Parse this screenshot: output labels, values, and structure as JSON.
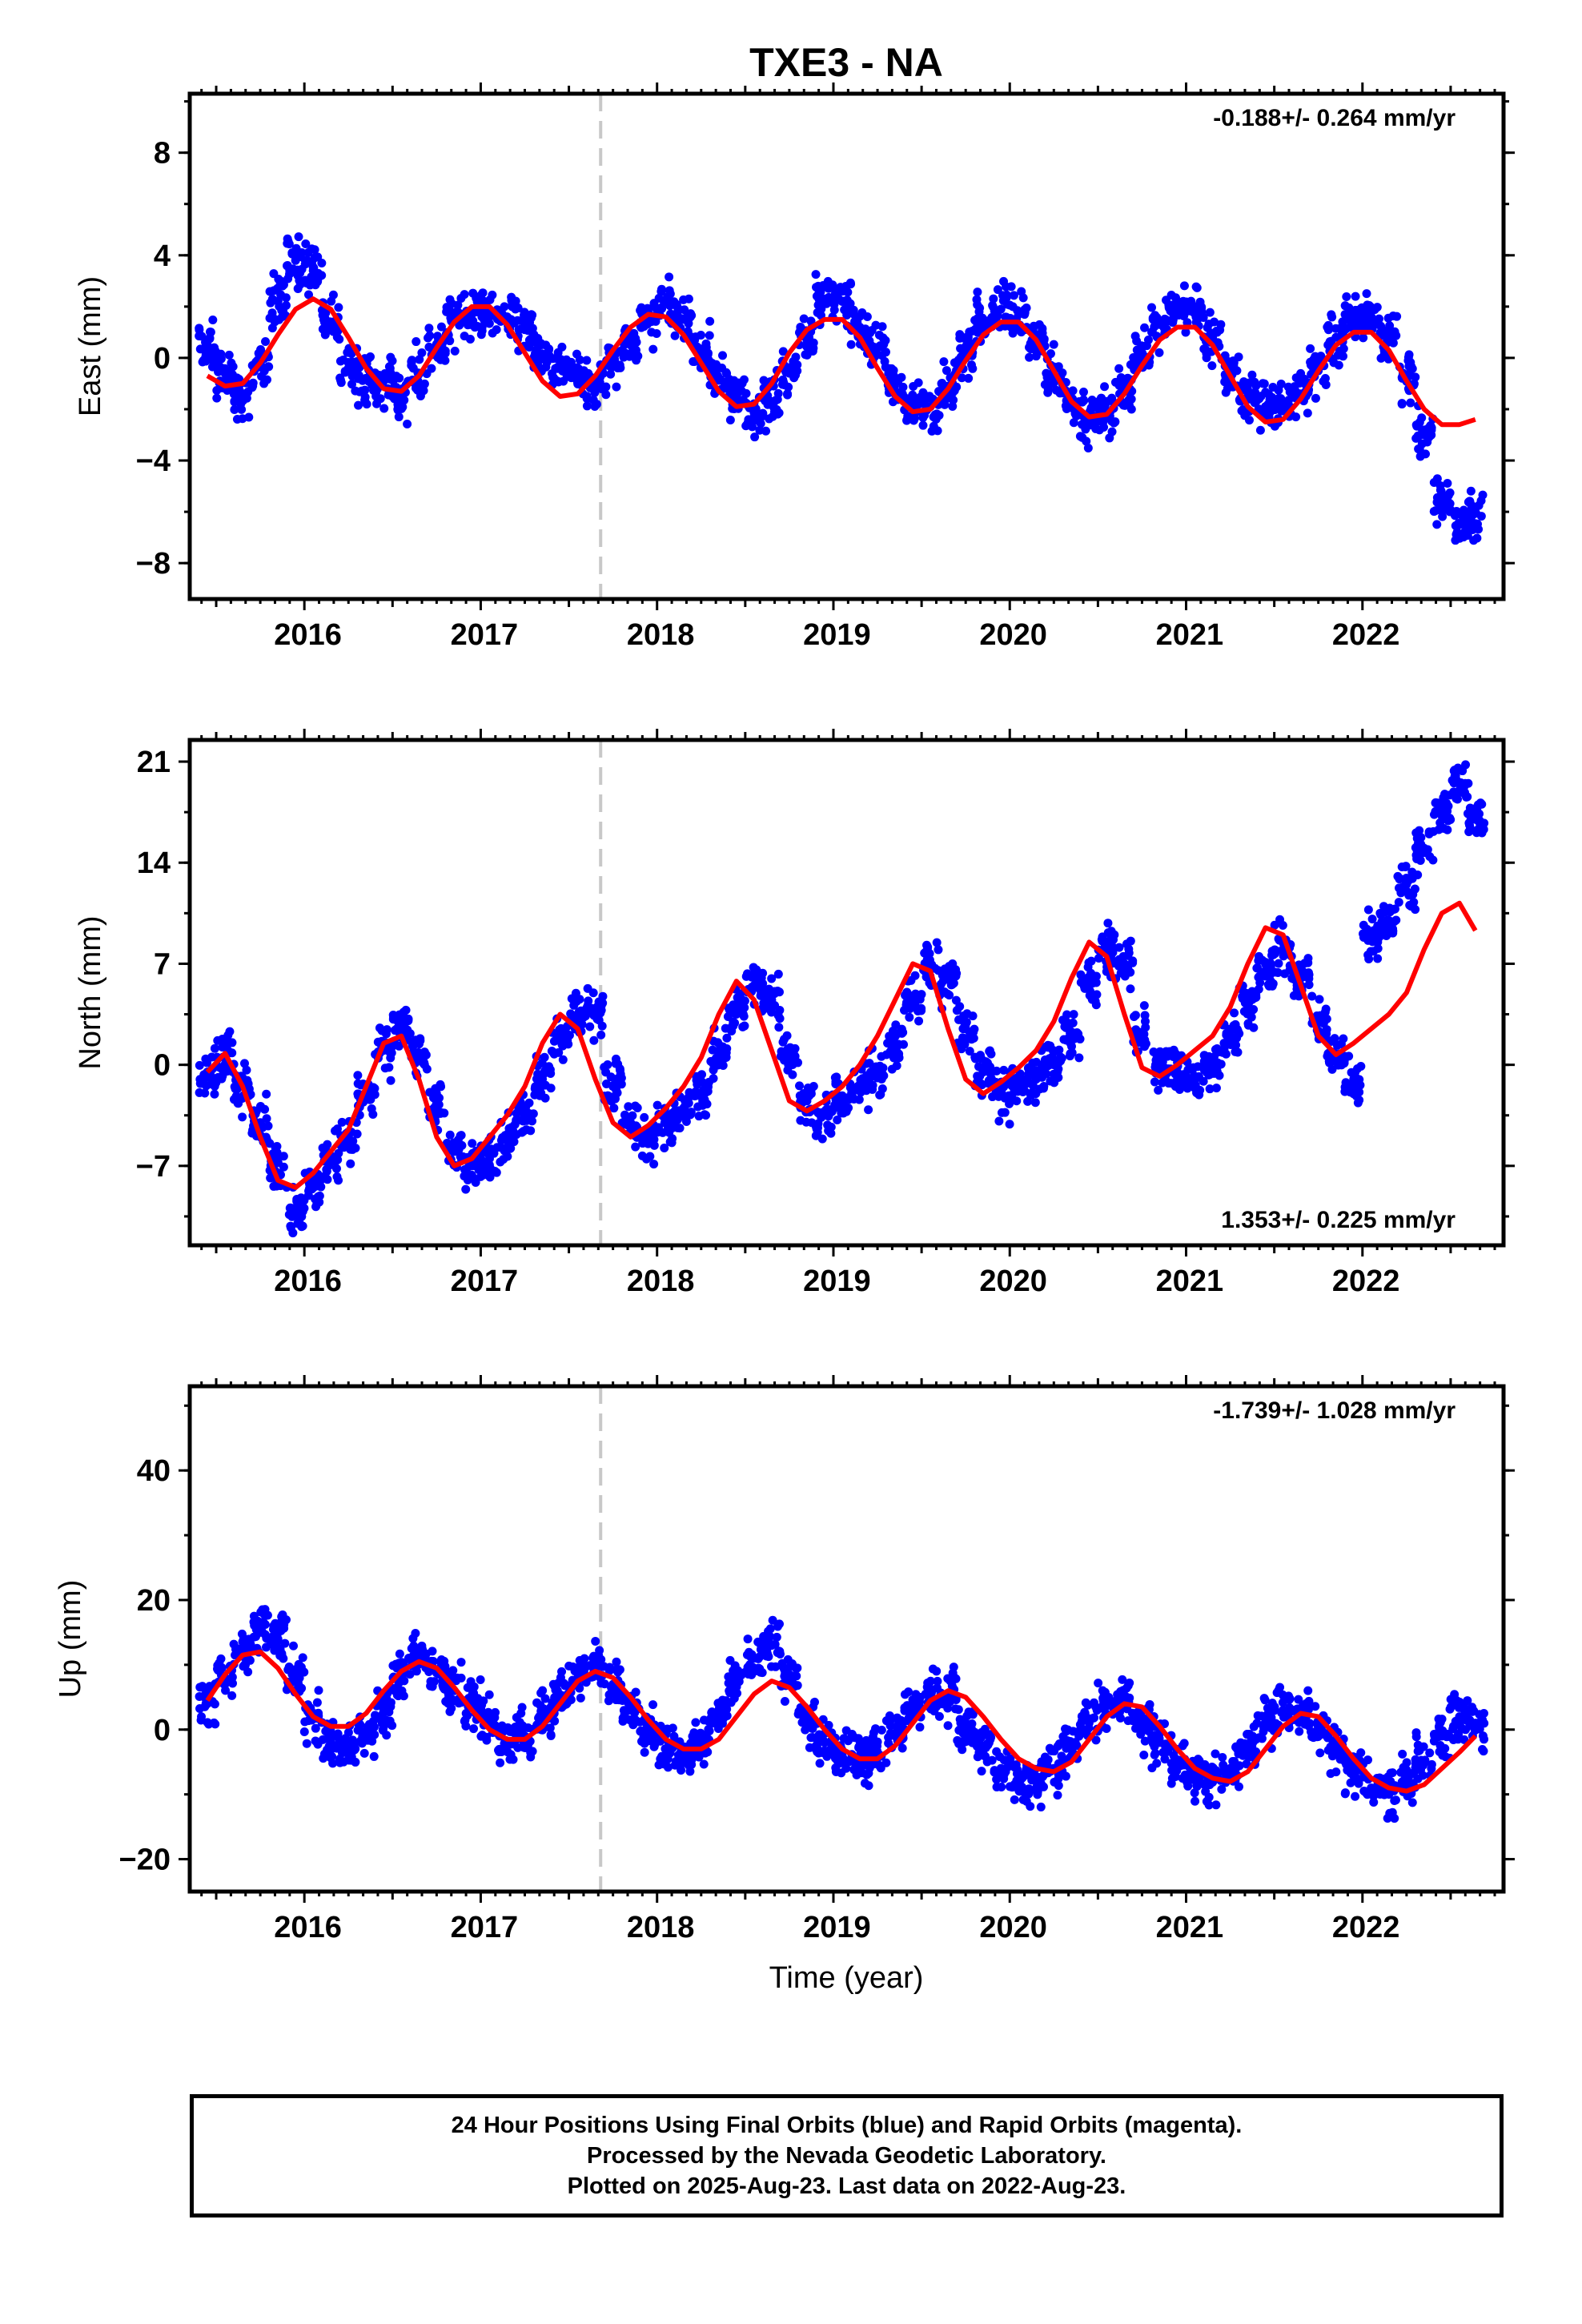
{
  "title": "TXE3 - NA",
  "xlabel": "Time (year)",
  "colors": {
    "points": "#0000ff",
    "model": "#ff0000",
    "discontinuity": "#c8c8c8",
    "axis": "#000000"
  },
  "footer": {
    "line1": "24 Hour Positions Using Final Orbits (blue) and Rapid Orbits (magenta).",
    "line2": "Processed by the Nevada Geodetic Laboratory.",
    "line3": "Plotted on 2025-Aug-23. Last data on 2022-Aug-23."
  },
  "chart_data": [
    {
      "type": "scatter",
      "panel": "east",
      "ylabel": "East (mm)",
      "rate_label": "-0.188+/- 0.264 mm/yr",
      "rate_position": "top-right",
      "xlim": [
        2015.35,
        2022.8
      ],
      "ylim": [
        -9.4,
        10.3
      ],
      "x_ticks": [
        "2016",
        "2017",
        "2018",
        "2019",
        "2020",
        "2021",
        "2022"
      ],
      "y_ticks": [
        8,
        4,
        0,
        -4,
        -8
      ],
      "discontinuity_x": 2017.68,
      "series": [
        {
          "role": "data",
          "x": [
            2015.45,
            2015.55,
            2015.65,
            2015.75,
            2015.85,
            2015.95,
            2016.05,
            2016.15,
            2016.25,
            2016.35,
            2016.45,
            2016.55,
            2016.65,
            2016.75,
            2016.85,
            2016.95,
            2017.05,
            2017.15,
            2017.25,
            2017.35,
            2017.45,
            2017.55,
            2017.65,
            2017.75,
            2017.85,
            2017.95,
            2018.05,
            2018.15,
            2018.25,
            2018.35,
            2018.45,
            2018.55,
            2018.65,
            2018.75,
            2018.85,
            2018.95,
            2019.05,
            2019.15,
            2019.25,
            2019.35,
            2019.45,
            2019.55,
            2019.65,
            2019.75,
            2019.85,
            2019.95,
            2020.05,
            2020.15,
            2020.25,
            2020.35,
            2020.45,
            2020.55,
            2020.65,
            2020.75,
            2020.85,
            2020.95,
            2021.05,
            2021.15,
            2021.25,
            2021.35,
            2021.45,
            2021.55,
            2021.65,
            2021.75,
            2021.85,
            2021.95,
            2022.05,
            2022.15,
            2022.25,
            2022.35,
            2022.45,
            2022.55,
            2022.64
          ],
          "y": [
            0.5,
            -0.6,
            -1.5,
            -0.2,
            2.2,
            3.8,
            3.4,
            1.3,
            -0.4,
            -0.8,
            -0.9,
            -1.5,
            -0.6,
            0.4,
            1.5,
            1.7,
            1.6,
            1.6,
            1.1,
            0.1,
            -0.4,
            -0.6,
            -1.0,
            -0.2,
            0.5,
            1.4,
            2.2,
            1.5,
            0.3,
            -0.8,
            -1.6,
            -2.3,
            -1.7,
            -0.6,
            0.9,
            2.3,
            2.2,
            1.2,
            0.4,
            -1.0,
            -1.8,
            -1.9,
            -1.1,
            0.2,
            1.4,
            1.9,
            1.7,
            0.7,
            -0.5,
            -1.6,
            -2.4,
            -2.2,
            -1.2,
            0.2,
            1.3,
            2.0,
            1.9,
            0.8,
            -0.6,
            -1.5,
            -1.9,
            -1.9,
            -1.4,
            -0.5,
            0.8,
            1.5,
            1.6,
            0.7,
            -0.8,
            -3.0,
            -5.5,
            -6.5,
            -6.0
          ]
        },
        {
          "role": "model",
          "x": [
            2015.45,
            2015.55,
            2015.65,
            2015.75,
            2015.85,
            2015.95,
            2016.05,
            2016.15,
            2016.25,
            2016.35,
            2016.45,
            2016.55,
            2016.65,
            2016.75,
            2016.85,
            2016.95,
            2017.05,
            2017.15,
            2017.25,
            2017.35,
            2017.45,
            2017.55,
            2017.65,
            2017.75,
            2017.85,
            2017.95,
            2018.05,
            2018.15,
            2018.25,
            2018.35,
            2018.45,
            2018.55,
            2018.65,
            2018.75,
            2018.85,
            2018.95,
            2019.05,
            2019.15,
            2019.25,
            2019.35,
            2019.45,
            2019.55,
            2019.65,
            2019.75,
            2019.85,
            2019.95,
            2020.05,
            2020.15,
            2020.25,
            2020.35,
            2020.45,
            2020.55,
            2020.65,
            2020.75,
            2020.85,
            2020.95,
            2021.05,
            2021.15,
            2021.25,
            2021.35,
            2021.45,
            2021.55,
            2021.65,
            2021.75,
            2021.85,
            2021.95,
            2022.05,
            2022.15,
            2022.25,
            2022.35,
            2022.45,
            2022.55,
            2022.64
          ],
          "y": [
            -0.7,
            -1.1,
            -1.0,
            -0.2,
            0.9,
            1.9,
            2.3,
            1.9,
            0.8,
            -0.4,
            -1.2,
            -1.3,
            -0.7,
            0.4,
            1.4,
            2.0,
            2.0,
            1.3,
            0.2,
            -0.9,
            -1.5,
            -1.4,
            -0.7,
            0.3,
            1.2,
            1.7,
            1.6,
            0.9,
            -0.2,
            -1.3,
            -1.9,
            -1.8,
            -1.0,
            0.2,
            1.1,
            1.5,
            1.5,
            0.8,
            -0.4,
            -1.5,
            -2.1,
            -2.0,
            -1.2,
            -0.1,
            0.9,
            1.4,
            1.4,
            0.7,
            -0.5,
            -1.7,
            -2.3,
            -2.2,
            -1.4,
            -0.3,
            0.7,
            1.2,
            1.2,
            0.5,
            -0.7,
            -1.9,
            -2.5,
            -2.4,
            -1.6,
            -0.5,
            0.5,
            1.0,
            1.0,
            0.3,
            -0.9,
            -2.0,
            -2.6,
            -2.6,
            -2.4
          ]
        }
      ]
    },
    {
      "type": "scatter",
      "panel": "north",
      "ylabel": "North (mm)",
      "rate_label": "1.353+/- 0.225 mm/yr",
      "rate_position": "bottom-right",
      "xlim": [
        2015.35,
        2022.8
      ],
      "ylim": [
        -12.5,
        22.5
      ],
      "x_ticks": [
        "2016",
        "2017",
        "2018",
        "2019",
        "2020",
        "2021",
        "2022"
      ],
      "y_ticks": [
        21,
        14,
        7,
        0,
        -7
      ],
      "discontinuity_x": 2017.68,
      "series": [
        {
          "role": "data",
          "x": [
            2015.45,
            2015.55,
            2015.65,
            2015.75,
            2015.85,
            2015.95,
            2016.05,
            2016.15,
            2016.25,
            2016.35,
            2016.45,
            2016.55,
            2016.65,
            2016.75,
            2016.85,
            2016.95,
            2017.05,
            2017.15,
            2017.25,
            2017.35,
            2017.45,
            2017.55,
            2017.65,
            2017.75,
            2017.85,
            2017.95,
            2018.05,
            2018.15,
            2018.25,
            2018.35,
            2018.45,
            2018.55,
            2018.65,
            2018.75,
            2018.85,
            2018.95,
            2019.05,
            2019.15,
            2019.25,
            2019.35,
            2019.45,
            2019.55,
            2019.65,
            2019.75,
            2019.85,
            2019.95,
            2020.05,
            2020.15,
            2020.25,
            2020.35,
            2020.45,
            2020.55,
            2020.65,
            2020.75,
            2020.85,
            2020.95,
            2021.05,
            2021.15,
            2021.25,
            2021.35,
            2021.45,
            2021.55,
            2021.65,
            2021.75,
            2021.85,
            2021.95,
            2022.05,
            2022.15,
            2022.25,
            2022.35,
            2022.45,
            2022.55,
            2022.64
          ],
          "y": [
            -0.5,
            0.6,
            -1.5,
            -4.0,
            -7.5,
            -10.0,
            -8.5,
            -6.5,
            -5.0,
            -2.0,
            1.0,
            2.5,
            0.5,
            -3.0,
            -6.0,
            -7.0,
            -6.5,
            -5.0,
            -3.5,
            -1.0,
            2.0,
            3.5,
            3.5,
            -1.5,
            -4.0,
            -5.0,
            -4.0,
            -3.0,
            -2.0,
            1.0,
            3.5,
            5.5,
            4.5,
            0.5,
            -2.5,
            -3.5,
            -2.5,
            -1.5,
            -0.5,
            1.5,
            4.5,
            7.0,
            6.0,
            2.5,
            -0.5,
            -2.0,
            -1.5,
            -1.0,
            0.0,
            2.0,
            5.5,
            8.0,
            7.0,
            2.0,
            0.0,
            -0.5,
            -1.0,
            0.0,
            2.0,
            4.0,
            6.5,
            8.0,
            6.0,
            3.0,
            0.5,
            -1.0,
            9.0,
            10.0,
            12.5,
            15.0,
            17.5,
            19.5,
            17.0
          ]
        },
        {
          "role": "model",
          "x": [
            2015.45,
            2015.55,
            2015.65,
            2015.75,
            2015.85,
            2015.95,
            2016.05,
            2016.15,
            2016.25,
            2016.35,
            2016.45,
            2016.55,
            2016.65,
            2016.75,
            2016.85,
            2016.95,
            2017.05,
            2017.15,
            2017.25,
            2017.35,
            2017.45,
            2017.55,
            2017.65,
            2017.75,
            2017.85,
            2017.95,
            2018.05,
            2018.15,
            2018.25,
            2018.35,
            2018.45,
            2018.55,
            2018.65,
            2018.75,
            2018.85,
            2018.95,
            2019.05,
            2019.15,
            2019.25,
            2019.35,
            2019.45,
            2019.55,
            2019.65,
            2019.75,
            2019.85,
            2019.95,
            2020.05,
            2020.15,
            2020.25,
            2020.35,
            2020.45,
            2020.55,
            2020.65,
            2020.75,
            2020.85,
            2020.95,
            2021.05,
            2021.15,
            2021.25,
            2021.35,
            2021.45,
            2021.55,
            2021.65,
            2021.75,
            2021.85,
            2021.95,
            2022.05,
            2022.15,
            2022.25,
            2022.35,
            2022.45,
            2022.55,
            2022.64
          ],
          "y": [
            -0.5,
            0.8,
            -1.5,
            -5.0,
            -8.0,
            -8.5,
            -7.5,
            -6.0,
            -4.5,
            -1.5,
            1.5,
            2.0,
            -1.0,
            -5.0,
            -7.0,
            -6.5,
            -5.0,
            -3.5,
            -1.5,
            1.5,
            3.5,
            2.5,
            -1.0,
            -4.0,
            -5.0,
            -4.2,
            -3.0,
            -1.5,
            0.5,
            3.5,
            5.8,
            4.5,
            1.0,
            -2.5,
            -3.2,
            -2.5,
            -1.5,
            0.0,
            2.0,
            4.5,
            7.0,
            6.5,
            2.5,
            -1.0,
            -2.0,
            -1.2,
            -0.2,
            1.0,
            3.0,
            6.0,
            8.5,
            7.5,
            3.5,
            -0.2,
            -0.8,
            0.0,
            1.0,
            2.0,
            4.0,
            7.0,
            9.5,
            9.0,
            5.5,
            2.0,
            0.7,
            1.5,
            2.5,
            3.5,
            5.0,
            8.0,
            10.5,
            11.2,
            9.3
          ]
        }
      ]
    },
    {
      "type": "scatter",
      "panel": "up",
      "ylabel": "Up (mm)",
      "rate_label": "-1.739+/- 1.028 mm/yr",
      "rate_position": "top-right",
      "xlim": [
        2015.35,
        2022.8
      ],
      "ylim": [
        -25,
        53
      ],
      "x_ticks": [
        "2016",
        "2017",
        "2018",
        "2019",
        "2020",
        "2021",
        "2022"
      ],
      "y_ticks": [
        40,
        20,
        0,
        -20
      ],
      "discontinuity_x": 2017.68,
      "series": [
        {
          "role": "data",
          "x": [
            2015.45,
            2015.55,
            2015.65,
            2015.75,
            2015.85,
            2015.95,
            2016.05,
            2016.15,
            2016.25,
            2016.35,
            2016.45,
            2016.55,
            2016.65,
            2016.75,
            2016.85,
            2016.95,
            2017.05,
            2017.15,
            2017.25,
            2017.35,
            2017.45,
            2017.55,
            2017.65,
            2017.75,
            2017.85,
            2017.95,
            2018.05,
            2018.15,
            2018.25,
            2018.35,
            2018.45,
            2018.55,
            2018.65,
            2018.75,
            2018.85,
            2018.95,
            2019.05,
            2019.15,
            2019.25,
            2019.35,
            2019.45,
            2019.55,
            2019.65,
            2019.75,
            2019.85,
            2019.95,
            2020.05,
            2020.15,
            2020.25,
            2020.35,
            2020.45,
            2020.55,
            2020.65,
            2020.75,
            2020.85,
            2020.95,
            2021.05,
            2021.15,
            2021.25,
            2021.35,
            2021.45,
            2021.55,
            2021.65,
            2021.75,
            2021.85,
            2021.95,
            2022.05,
            2022.15,
            2022.25,
            2022.35,
            2022.45,
            2022.55,
            2022.64
          ],
          "y": [
            4,
            8,
            12,
            15,
            14,
            8,
            2,
            -2,
            -3,
            -1,
            3,
            8,
            11,
            9,
            6,
            4,
            1,
            -2,
            -1,
            2,
            5,
            8,
            10,
            7,
            3,
            0,
            -3,
            -4,
            -2,
            2,
            7,
            11,
            13,
            8,
            2,
            -2,
            -4,
            -5,
            -4,
            -1,
            3,
            5,
            5,
            1,
            -3,
            -6,
            -8,
            -8,
            -6,
            -3,
            1,
            4,
            4,
            1,
            -2,
            -5,
            -7,
            -8,
            -6,
            -3,
            1,
            3,
            2,
            0,
            -3,
            -6,
            -9,
            -10,
            -8,
            -5,
            -1,
            2,
            1
          ]
        },
        {
          "role": "model",
          "x": [
            2015.45,
            2015.55,
            2015.65,
            2015.75,
            2015.85,
            2015.95,
            2016.05,
            2016.15,
            2016.25,
            2016.35,
            2016.45,
            2016.55,
            2016.65,
            2016.75,
            2016.85,
            2016.95,
            2017.05,
            2017.15,
            2017.25,
            2017.35,
            2017.45,
            2017.55,
            2017.65,
            2017.75,
            2017.85,
            2017.95,
            2018.05,
            2018.15,
            2018.25,
            2018.35,
            2018.45,
            2018.55,
            2018.65,
            2018.75,
            2018.85,
            2018.95,
            2019.05,
            2019.15,
            2019.25,
            2019.35,
            2019.45,
            2019.55,
            2019.65,
            2019.75,
            2019.85,
            2019.95,
            2020.05,
            2020.15,
            2020.25,
            2020.35,
            2020.45,
            2020.55,
            2020.65,
            2020.75,
            2020.85,
            2020.95,
            2021.05,
            2021.15,
            2021.25,
            2021.35,
            2021.45,
            2021.55,
            2021.65,
            2021.75,
            2021.85,
            2021.95,
            2022.05,
            2022.15,
            2022.25,
            2022.35,
            2022.45,
            2022.55,
            2022.64
          ],
          "y": [
            4.5,
            8.5,
            11.5,
            12.0,
            9.5,
            5.5,
            2.0,
            0.5,
            0.5,
            2.5,
            6.0,
            9.0,
            10.5,
            9.5,
            6.5,
            3.0,
            0.0,
            -1.5,
            -1.5,
            0.5,
            4.0,
            7.5,
            9.0,
            8.0,
            5.0,
            1.5,
            -1.5,
            -3.0,
            -3.0,
            -1.5,
            2.0,
            5.5,
            7.5,
            6.5,
            3.5,
            0.0,
            -3.0,
            -4.5,
            -4.5,
            -2.5,
            1.0,
            4.5,
            6.0,
            5.0,
            2.0,
            -1.5,
            -4.5,
            -6.0,
            -6.5,
            -5.0,
            -1.5,
            2.0,
            4.0,
            3.5,
            0.5,
            -3.0,
            -6.0,
            -7.5,
            -8.0,
            -6.5,
            -3.0,
            0.5,
            2.5,
            2.0,
            -1.0,
            -4.5,
            -7.5,
            -9.0,
            -9.5,
            -8.5,
            -6.0,
            -3.5,
            -1.0
          ]
        }
      ]
    }
  ]
}
